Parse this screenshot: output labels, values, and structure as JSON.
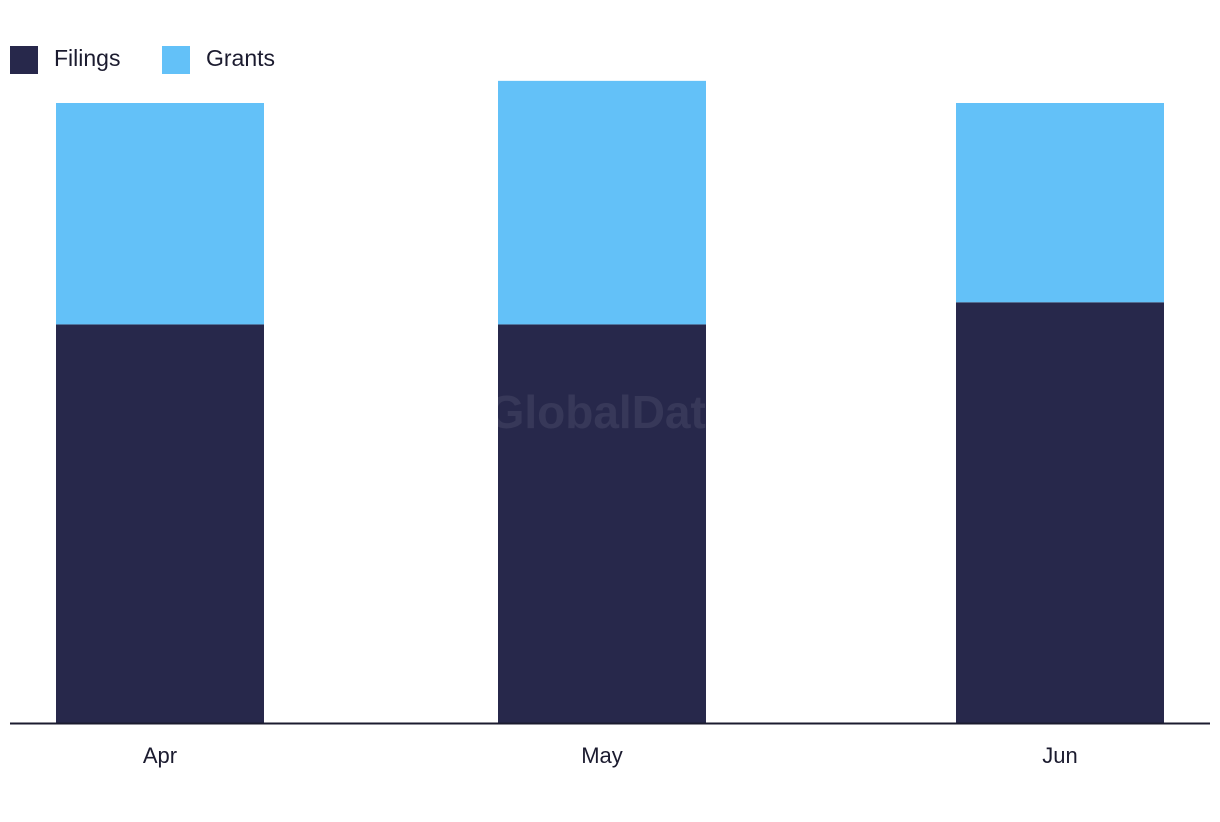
{
  "chart_data": {
    "type": "bar",
    "stacked": true,
    "categories": [
      "Apr",
      "May",
      "Jun"
    ],
    "series": [
      {
        "name": "Filings",
        "values": [
          18,
          18,
          19
        ],
        "color": "#27284b"
      },
      {
        "name": "Grants",
        "values": [
          10,
          11,
          9
        ],
        "color": "#63c1f8"
      }
    ],
    "ylim": [
      0,
      28
    ],
    "grid": false,
    "legend_position": "top-left",
    "watermark": "GlobalData"
  }
}
